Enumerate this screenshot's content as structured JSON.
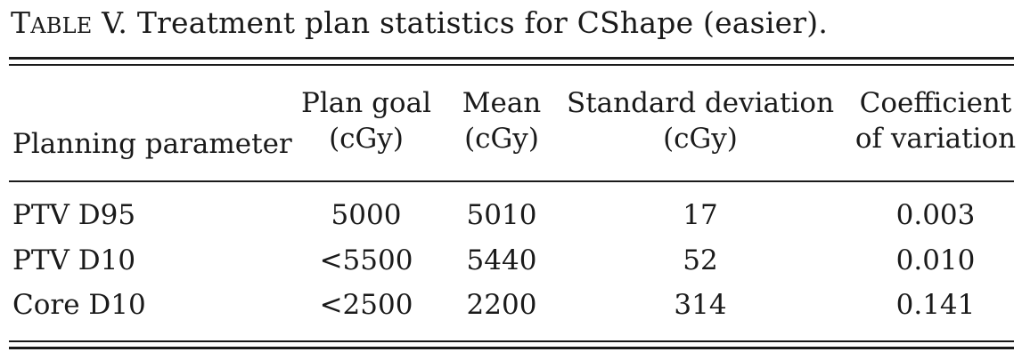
{
  "caption": {
    "label_first": "T",
    "label_rest": "ABLE",
    "number": "V.",
    "text": "Treatment plan statistics for CShape (easier)."
  },
  "header": {
    "planning_parameter": "Planning parameter",
    "plan_goal": [
      "Plan goal",
      "(cGy)"
    ],
    "mean": [
      "Mean",
      "(cGy)"
    ],
    "standard_deviation": [
      "Standard deviation",
      "(cGy)"
    ],
    "coefficient": [
      "Coefficient",
      "of variation"
    ]
  },
  "rows": [
    {
      "parameter": "PTV D95",
      "plan_goal": "5000",
      "mean": "5010",
      "sd": "17",
      "cv": "0.003"
    },
    {
      "parameter": "PTV D10",
      "plan_goal": "<5500",
      "mean": "5440",
      "sd": "52",
      "cv": "0.010"
    },
    {
      "parameter": "Core D10",
      "plan_goal": "<2500",
      "mean": "2200",
      "sd": "314",
      "cv": "0.141"
    }
  ]
}
